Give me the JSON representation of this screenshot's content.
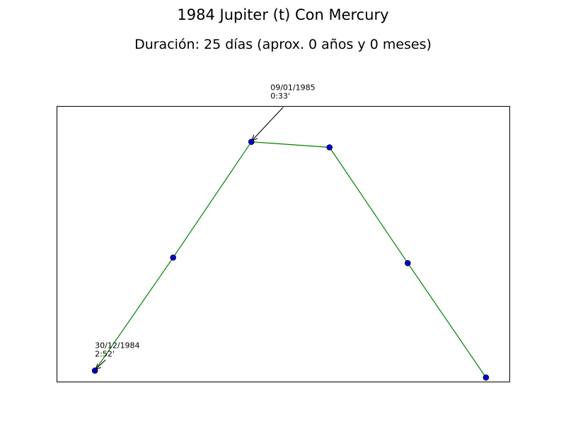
{
  "chart_data": {
    "type": "line",
    "title": "1984 Jupiter (t) Con Mercury",
    "subtitle": "Duración: 25 días (aprox. 0 años y 0 meses)",
    "xlabel": "",
    "ylabel": "",
    "grid": false,
    "axes_visible": false,
    "x": [
      0,
      1,
      2,
      3,
      4,
      5
    ],
    "series": [
      {
        "values": [
          0.04,
          0.45,
          0.87,
          0.85,
          0.43,
          0.015
        ],
        "line_color": "#008000",
        "marker_color": "#0000cc"
      }
    ],
    "xlim": [
      -0.49,
      5.3
    ],
    "ylim": [
      0,
      1
    ],
    "annotations": [
      {
        "point_index": 0,
        "line1": "30/12/1984",
        "line2": "2:52'"
      },
      {
        "point_index": 2,
        "line1": "09/01/1985",
        "line2": "0:33'"
      }
    ]
  }
}
